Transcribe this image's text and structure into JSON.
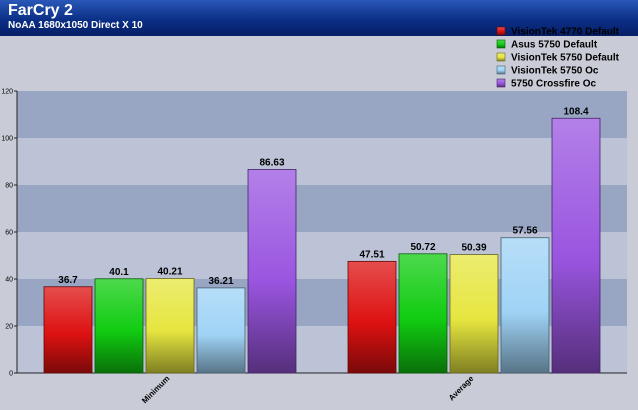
{
  "chart_data": {
    "type": "bar",
    "title": "FarCry 2",
    "subtitle": "NoAA 1680x1050 Direct X 10",
    "categories": [
      "Minimum",
      "Average"
    ],
    "series": [
      {
        "name": "VisionTek 4770 Default",
        "values": [
          36.7,
          47.51
        ],
        "labels": [
          "36.7",
          "47.51"
        ],
        "color": "#dd1111"
      },
      {
        "name": "Asus 5750 Default",
        "values": [
          40.1,
          50.72
        ],
        "labels": [
          "40.1",
          "50.72"
        ],
        "color": "#11cc11"
      },
      {
        "name": "VisionTek 5750 Default",
        "values": [
          40.21,
          50.39
        ],
        "labels": [
          "40.21",
          "50.39"
        ],
        "color": "#e6e640"
      },
      {
        "name": "VisionTek 5750 Oc",
        "values": [
          36.21,
          57.56
        ],
        "labels": [
          "36.21",
          "57.56"
        ],
        "color": "#9fd3f5"
      },
      {
        "name": "5750 Crossfire Oc",
        "values": [
          86.63,
          108.4
        ],
        "labels": [
          "86.63",
          "108.4"
        ],
        "color": "#9a55e0"
      }
    ],
    "yticks": [
      "0",
      "20",
      "40",
      "60",
      "80",
      "100",
      "120"
    ],
    "ylim": [
      0,
      120
    ],
    "xlabel": "",
    "ylabel": "",
    "grid": true,
    "legend_position": "top-right"
  }
}
